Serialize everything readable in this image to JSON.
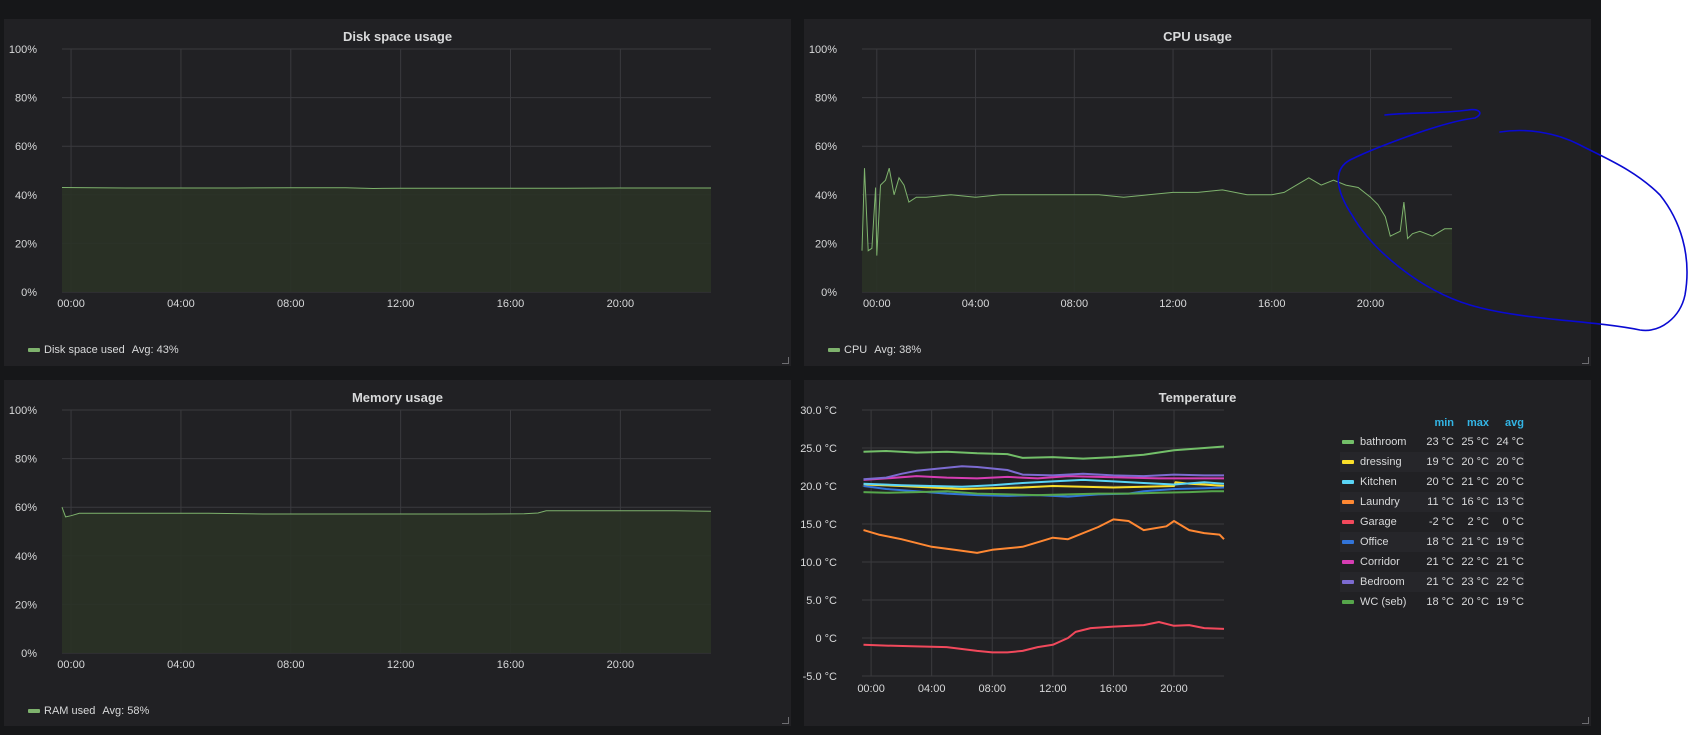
{
  "panels": {
    "disk": {
      "title": "Disk space usage",
      "legend_label": "Disk space used",
      "legend_avg": "Avg: 43%"
    },
    "cpu": {
      "title": "CPU usage",
      "legend_label": "CPU",
      "legend_avg": "Avg: 38%"
    },
    "memory": {
      "title": "Memory usage",
      "legend_label": "RAM used",
      "legend_avg": "Avg: 58%"
    },
    "temperature": {
      "title": "Temperature"
    }
  },
  "colors": {
    "background": "#161719",
    "panel": "#212124",
    "grid": "#3a3a3e",
    "series_green": "#7eb26d",
    "area_fill": "#2a3226",
    "annotation": "#0a0ad2",
    "legend_header": "#33b5e5"
  },
  "temp_legend": {
    "headers": [
      "min",
      "max",
      "avg"
    ],
    "rows": [
      {
        "name": "bathroom",
        "color": "#73bf69",
        "min": "23 °C",
        "max": "25 °C",
        "avg": "24 °C"
      },
      {
        "name": "dressing",
        "color": "#fade2a",
        "min": "19 °C",
        "max": "20 °C",
        "avg": "20 °C"
      },
      {
        "name": "Kitchen",
        "color": "#5ad4f5",
        "min": "20 °C",
        "max": "21 °C",
        "avg": "20 °C"
      },
      {
        "name": "Laundry",
        "color": "#ff8833",
        "min": "11 °C",
        "max": "16 °C",
        "avg": "13 °C"
      },
      {
        "name": "Garage",
        "color": "#f2495c",
        "min": "-2 °C",
        "max": "2 °C",
        "avg": "0 °C"
      },
      {
        "name": "Office",
        "color": "#3274d9",
        "min": "18 °C",
        "max": "21 °C",
        "avg": "19 °C"
      },
      {
        "name": "Corridor",
        "color": "#d63db3",
        "min": "21 °C",
        "max": "22 °C",
        "avg": "21 °C"
      },
      {
        "name": "Bedroom",
        "color": "#7c6bd1",
        "min": "21 °C",
        "max": "23 °C",
        "avg": "22 °C"
      },
      {
        "name": "WC (seb)",
        "color": "#56a64b",
        "min": "18 °C",
        "max": "20 °C",
        "avg": "19 °C"
      }
    ]
  },
  "chart_data": [
    {
      "id": "disk",
      "type": "area",
      "title": "Disk space usage",
      "x_ticks": [
        "00:00",
        "04:00",
        "08:00",
        "12:00",
        "16:00",
        "20:00"
      ],
      "y_ticks": [
        "0%",
        "20%",
        "40%",
        "60%",
        "80%",
        "100%"
      ],
      "ylim": [
        0,
        100
      ],
      "xlim": [
        -0.33,
        23.3
      ],
      "legend": "bottom-left",
      "series": [
        {
          "name": "Disk space used",
          "color": "#7eb26d",
          "x": [
            -0.33,
            2,
            4,
            6,
            8,
            10,
            11,
            12,
            14,
            16,
            18,
            20,
            22,
            23.3
          ],
          "y": [
            43,
            42.8,
            42.8,
            42.8,
            42.9,
            42.9,
            42.6,
            42.7,
            42.7,
            42.7,
            42.7,
            42.8,
            42.8,
            42.8
          ]
        }
      ],
      "annotations": {
        "avg": "Avg: 43%"
      }
    },
    {
      "id": "cpu",
      "type": "area",
      "title": "CPU usage",
      "x_ticks": [
        "00:00",
        "04:00",
        "08:00",
        "12:00",
        "16:00",
        "20:00"
      ],
      "y_ticks": [
        "0%",
        "20%",
        "40%",
        "60%",
        "80%",
        "100%"
      ],
      "ylim": [
        0,
        100
      ],
      "xlim": [
        -0.6,
        23.3
      ],
      "legend": "bottom-left",
      "series": [
        {
          "name": "CPU",
          "color": "#7eb26d",
          "x": [
            -0.6,
            -0.5,
            -0.35,
            -0.2,
            -0.05,
            0,
            0.15,
            0.35,
            0.5,
            0.7,
            0.9,
            1.1,
            1.3,
            1.6,
            2,
            3,
            4,
            5,
            6,
            7,
            8,
            9,
            10,
            11,
            12,
            13,
            14,
            15,
            16,
            16.5,
            17,
            17.5,
            18,
            18.5,
            19,
            19.5,
            20,
            20.3,
            20.6,
            20.8,
            21.0,
            21.2,
            21.35,
            21.5,
            21.7,
            22,
            22.5,
            23,
            23.3
          ],
          "y": [
            17,
            51,
            17,
            18,
            43,
            15,
            44,
            46,
            51,
            40,
            47,
            44,
            37,
            39,
            39,
            40,
            39,
            40,
            40,
            40,
            40,
            40,
            39,
            40,
            41,
            41,
            42,
            40,
            40,
            41,
            44,
            47,
            44,
            46,
            44,
            43,
            39,
            36,
            31,
            23,
            24,
            25,
            37,
            22,
            24,
            25,
            23,
            26,
            26
          ]
        }
      ],
      "annotations": {
        "avg": "Avg: 38%"
      }
    },
    {
      "id": "memory",
      "type": "area",
      "title": "Memory usage",
      "x_ticks": [
        "00:00",
        "04:00",
        "08:00",
        "12:00",
        "16:00",
        "20:00"
      ],
      "y_ticks": [
        "0%",
        "20%",
        "40%",
        "60%",
        "80%",
        "100%"
      ],
      "ylim": [
        0,
        100
      ],
      "xlim": [
        -0.33,
        23.3
      ],
      "legend": "bottom-left",
      "series": [
        {
          "name": "RAM used",
          "color": "#7eb26d",
          "x": [
            -0.33,
            -0.2,
            0,
            0.3,
            1,
            3,
            5,
            7,
            9,
            11,
            13,
            15,
            16.5,
            17,
            17.3,
            18,
            20,
            22,
            23.3
          ],
          "y": [
            60,
            56,
            56.5,
            57.5,
            57.5,
            57.5,
            57.5,
            57.2,
            57.2,
            57.2,
            57.2,
            57.2,
            57.3,
            57.6,
            58.5,
            58.5,
            58.5,
            58.5,
            58.3
          ]
        }
      ],
      "annotations": {
        "avg": "Avg: 58%"
      }
    },
    {
      "id": "temperature",
      "type": "line",
      "title": "Temperature",
      "x_ticks": [
        "00:00",
        "04:00",
        "08:00",
        "12:00",
        "16:00",
        "20:00"
      ],
      "y_ticks": [
        "-5.0 °C",
        "0 °C",
        "5.0 °C",
        "10.0 °C",
        "15.0 °C",
        "20.0 °C",
        "25.0 °C",
        "30.0 °C"
      ],
      "ylim": [
        -5,
        30
      ],
      "xlim": [
        -0.6,
        23.3
      ],
      "legend": "right",
      "series": [
        {
          "name": "bathroom",
          "color": "#73bf69",
          "x": [
            -0.5,
            1,
            3,
            5,
            7,
            9,
            10,
            12,
            14,
            16,
            18,
            20,
            22,
            23.3
          ],
          "y": [
            24.5,
            24.6,
            24.4,
            24.5,
            24.3,
            24.2,
            23.7,
            23.8,
            23.6,
            23.8,
            24.1,
            24.7,
            25.0,
            25.2
          ]
        },
        {
          "name": "dressing",
          "color": "#fade2a",
          "x": [
            -0.5,
            2,
            4,
            6,
            8,
            10,
            12,
            14,
            16,
            18,
            20,
            20.1,
            21,
            22,
            23.3
          ],
          "y": [
            20.2,
            20.0,
            19.8,
            19.6,
            19.7,
            19.8,
            20.0,
            19.9,
            19.8,
            19.9,
            20.0,
            20.5,
            20.3,
            20.2,
            20.0
          ]
        },
        {
          "name": "Kitchen",
          "color": "#5ad4f5",
          "x": [
            -0.5,
            2,
            4,
            6,
            8,
            10,
            12,
            14,
            16,
            18,
            20,
            22,
            23.3
          ],
          "y": [
            20.3,
            20.1,
            20.0,
            19.9,
            20.1,
            20.4,
            20.6,
            20.8,
            20.6,
            20.4,
            20.2,
            20.5,
            20.3
          ]
        },
        {
          "name": "Laundry",
          "color": "#ff8833",
          "x": [
            -0.5,
            0.5,
            2,
            4,
            5.5,
            7,
            8,
            10,
            12,
            13,
            15,
            16,
            17,
            18,
            19.5,
            20,
            21,
            22,
            23,
            23.3
          ],
          "y": [
            14.2,
            13.6,
            13.0,
            12.0,
            11.6,
            11.2,
            11.6,
            12.0,
            13.2,
            13.0,
            14.6,
            15.6,
            15.4,
            14.2,
            14.7,
            15.4,
            14.2,
            13.8,
            13.6,
            13.0
          ]
        },
        {
          "name": "Garage",
          "color": "#f2495c",
          "x": [
            -0.5,
            1,
            3,
            5,
            7,
            8,
            9,
            10,
            11,
            12,
            13,
            13.5,
            14.5,
            16,
            18,
            19,
            20,
            21,
            22,
            23.3
          ],
          "y": [
            -0.9,
            -1.0,
            -1.1,
            -1.2,
            -1.7,
            -1.9,
            -1.9,
            -1.7,
            -1.2,
            -0.9,
            0.0,
            0.8,
            1.3,
            1.5,
            1.7,
            2.1,
            1.6,
            1.7,
            1.3,
            1.2
          ]
        },
        {
          "name": "Office",
          "color": "#3274d9",
          "x": [
            -0.5,
            1,
            3,
            5,
            7,
            9,
            11,
            13,
            15,
            17,
            18,
            20,
            22,
            23.3
          ],
          "y": [
            20.0,
            19.6,
            19.3,
            19.0,
            18.8,
            18.7,
            18.8,
            18.6,
            18.9,
            19.0,
            19.3,
            19.6,
            19.7,
            19.8
          ]
        },
        {
          "name": "Corridor",
          "color": "#d63db3",
          "x": [
            -0.5,
            1,
            3,
            5,
            7,
            9,
            11,
            13,
            15,
            17,
            19,
            21,
            23.3
          ],
          "y": [
            20.8,
            21.0,
            21.3,
            21.1,
            21.0,
            21.2,
            21.0,
            21.3,
            21.2,
            21.1,
            21.0,
            21.0,
            21.0
          ]
        },
        {
          "name": "Bedroom",
          "color": "#7c6bd1",
          "x": [
            -0.5,
            1,
            2,
            3,
            4,
            5,
            6,
            7,
            8,
            9,
            10,
            12,
            14,
            16,
            18,
            20,
            22,
            23.3
          ],
          "y": [
            20.9,
            21.1,
            21.6,
            22.0,
            22.2,
            22.4,
            22.6,
            22.5,
            22.3,
            22.1,
            21.5,
            21.4,
            21.6,
            21.4,
            21.3,
            21.5,
            21.4,
            21.4
          ]
        },
        {
          "name": "WC (seb)",
          "color": "#56a64b",
          "x": [
            -0.5,
            1,
            3,
            5,
            7,
            9,
            11,
            13,
            15,
            17,
            19,
            21,
            22.5,
            23.3
          ],
          "y": [
            19.2,
            19.1,
            19.2,
            19.3,
            19.0,
            18.9,
            18.8,
            18.9,
            19.0,
            19.0,
            19.1,
            19.2,
            19.3,
            19.3
          ]
        }
      ]
    }
  ]
}
